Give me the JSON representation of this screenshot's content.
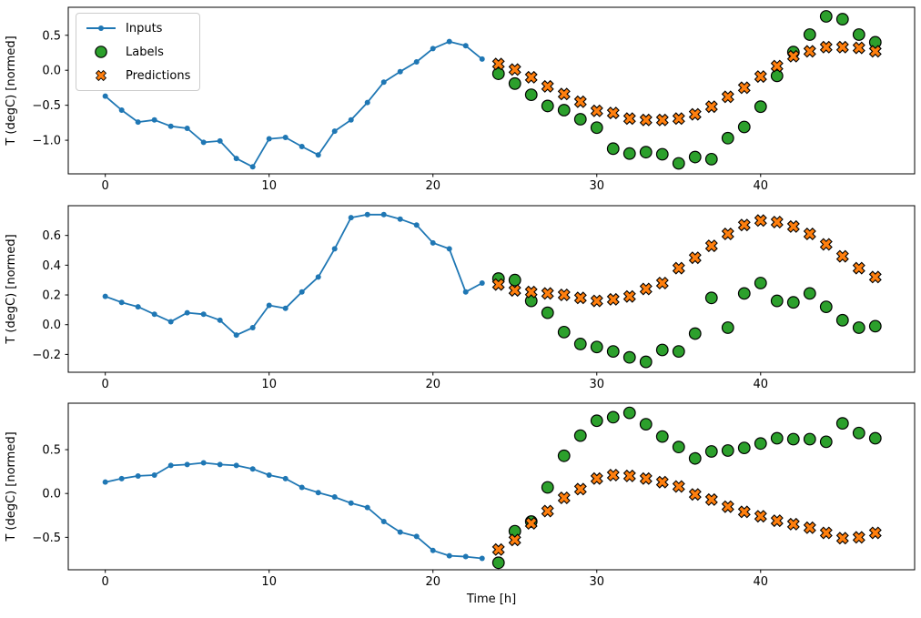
{
  "figure": {
    "xlabel": "Time [h]",
    "background": "#ffffff",
    "colors": {
      "inputs": "#1f77b4",
      "labels": "#2ca02c",
      "predictions": "#ff7f0e",
      "marker_edge": "#000000",
      "legend_border": "#cccccc",
      "axis": "#000000"
    }
  },
  "legend": {
    "position": "upper left of first subplot",
    "items": [
      {
        "label": "Inputs",
        "marker": "line-dot",
        "color": "#1f77b4"
      },
      {
        "label": "Labels",
        "marker": "circle",
        "color": "#2ca02c"
      },
      {
        "label": "Predictions",
        "marker": "x",
        "color": "#ff7f0e"
      }
    ]
  },
  "chart_data": [
    {
      "type": "line",
      "title": "",
      "xlabel": "",
      "ylabel": "T (degC) [normed]",
      "grid": false,
      "xlim": [
        -2.26,
        49.4
      ],
      "ylim": [
        -1.48,
        0.9
      ],
      "xticks": [
        0,
        10,
        20,
        30,
        40
      ],
      "yticks": [
        0.5,
        0.0,
        -0.5,
        -1.0
      ],
      "series": [
        {
          "name": "Inputs",
          "type": "line_dot",
          "color": "#1f77b4",
          "x": [
            0,
            1,
            2,
            3,
            4,
            5,
            6,
            7,
            8,
            9,
            10,
            11,
            12,
            13,
            14,
            15,
            16,
            17,
            18,
            19,
            20,
            21,
            22,
            23
          ],
          "y": [
            -0.37,
            -0.57,
            -0.74,
            -0.71,
            -0.8,
            -0.83,
            -1.03,
            -1.01,
            -1.26,
            -1.38,
            -0.98,
            -0.96,
            -1.09,
            -1.21,
            -0.87,
            -0.71,
            -0.46,
            -0.17,
            -0.02,
            0.12,
            0.31,
            0.41,
            0.35,
            0.16
          ]
        },
        {
          "name": "Labels",
          "type": "scatter_circle",
          "color": "#2ca02c",
          "x": [
            24,
            25,
            26,
            27,
            28,
            29,
            30,
            31,
            32,
            33,
            34,
            35,
            36,
            37,
            38,
            39,
            40,
            41,
            42,
            43,
            44,
            45,
            46,
            47
          ],
          "y": [
            -0.05,
            -0.19,
            -0.35,
            -0.51,
            -0.57,
            -0.7,
            -0.82,
            -1.12,
            -1.19,
            -1.17,
            -1.2,
            -1.33,
            -1.24,
            -1.27,
            -0.97,
            -0.81,
            -0.52,
            -0.08,
            0.26,
            0.51,
            0.77,
            0.73,
            0.51,
            0.4
          ]
        },
        {
          "name": "Predictions",
          "type": "scatter_x",
          "color": "#ff7f0e",
          "x": [
            24,
            25,
            26,
            27,
            28,
            29,
            30,
            31,
            32,
            33,
            34,
            35,
            36,
            37,
            38,
            39,
            40,
            41,
            42,
            43,
            44,
            45,
            46,
            47
          ],
          "y": [
            0.09,
            0.01,
            -0.1,
            -0.23,
            -0.34,
            -0.45,
            -0.58,
            -0.61,
            -0.69,
            -0.71,
            -0.71,
            -0.69,
            -0.63,
            -0.52,
            -0.38,
            -0.25,
            -0.09,
            0.06,
            0.2,
            0.27,
            0.33,
            0.33,
            0.32,
            0.27
          ]
        }
      ]
    },
    {
      "type": "line",
      "title": "",
      "xlabel": "",
      "ylabel": "T (degC) [normed]",
      "grid": false,
      "xlim": [
        -2.26,
        49.4
      ],
      "ylim": [
        -0.32,
        0.8
      ],
      "xticks": [
        0,
        10,
        20,
        30,
        40
      ],
      "yticks": [
        0.6,
        0.4,
        0.2,
        0.0,
        -0.2
      ],
      "series": [
        {
          "name": "Inputs",
          "type": "line_dot",
          "color": "#1f77b4",
          "x": [
            0,
            1,
            2,
            3,
            4,
            5,
            6,
            7,
            8,
            9,
            10,
            11,
            12,
            13,
            14,
            15,
            16,
            17,
            18,
            19,
            20,
            21,
            22,
            23
          ],
          "y": [
            0.19,
            0.15,
            0.12,
            0.07,
            0.02,
            0.08,
            0.07,
            0.03,
            -0.07,
            -0.02,
            0.13,
            0.11,
            0.22,
            0.32,
            0.51,
            0.72,
            0.74,
            0.74,
            0.71,
            0.67,
            0.55,
            0.51,
            0.22,
            0.28
          ]
        },
        {
          "name": "Labels",
          "type": "scatter_circle",
          "color": "#2ca02c",
          "x": [
            24,
            25,
            26,
            27,
            28,
            29,
            30,
            31,
            32,
            33,
            34,
            35,
            36,
            37,
            38,
            39,
            40,
            41,
            42,
            43,
            44,
            45,
            46,
            47
          ],
          "y": [
            0.31,
            0.3,
            0.16,
            0.08,
            -0.05,
            -0.13,
            -0.15,
            -0.18,
            -0.22,
            -0.25,
            -0.17,
            -0.18,
            -0.06,
            0.18,
            -0.02,
            0.21,
            0.28,
            0.16,
            0.15,
            0.21,
            0.12,
            0.03,
            -0.02,
            -0.01
          ]
        },
        {
          "name": "Predictions",
          "type": "scatter_x",
          "color": "#ff7f0e",
          "x": [
            24,
            25,
            26,
            27,
            28,
            29,
            30,
            31,
            32,
            33,
            34,
            35,
            36,
            37,
            38,
            39,
            40,
            41,
            42,
            43,
            44,
            45,
            46,
            47
          ],
          "y": [
            0.27,
            0.23,
            0.22,
            0.21,
            0.2,
            0.18,
            0.16,
            0.17,
            0.19,
            0.24,
            0.28,
            0.38,
            0.45,
            0.53,
            0.61,
            0.67,
            0.7,
            0.69,
            0.66,
            0.61,
            0.54,
            0.46,
            0.38,
            0.32
          ]
        }
      ]
    },
    {
      "type": "line",
      "title": "",
      "xlabel": "Time [h]",
      "ylabel": "T (degC) [normed]",
      "grid": false,
      "xlim": [
        -2.26,
        49.4
      ],
      "ylim": [
        -0.87,
        1.03
      ],
      "xticks": [
        0,
        10,
        20,
        30,
        40
      ],
      "yticks": [
        0.5,
        0.0,
        -0.5
      ],
      "series": [
        {
          "name": "Inputs",
          "type": "line_dot",
          "color": "#1f77b4",
          "x": [
            0,
            1,
            2,
            3,
            4,
            5,
            6,
            7,
            8,
            9,
            10,
            11,
            12,
            13,
            14,
            15,
            16,
            17,
            18,
            19,
            20,
            21,
            22,
            23
          ],
          "y": [
            0.13,
            0.17,
            0.2,
            0.21,
            0.32,
            0.33,
            0.35,
            0.33,
            0.32,
            0.28,
            0.21,
            0.17,
            0.07,
            0.01,
            -0.04,
            -0.11,
            -0.16,
            -0.32,
            -0.44,
            -0.49,
            -0.65,
            -0.71,
            -0.72,
            -0.74
          ]
        },
        {
          "name": "Labels",
          "type": "scatter_circle",
          "color": "#2ca02c",
          "x": [
            24,
            25,
            26,
            27,
            28,
            29,
            30,
            31,
            32,
            33,
            34,
            35,
            36,
            37,
            38,
            39,
            40,
            41,
            42,
            43,
            44,
            45,
            46,
            47
          ],
          "y": [
            -0.79,
            -0.43,
            -0.32,
            0.07,
            0.43,
            0.66,
            0.83,
            0.87,
            0.92,
            0.79,
            0.65,
            0.53,
            0.4,
            0.48,
            0.49,
            0.52,
            0.57,
            0.63,
            0.62,
            0.62,
            0.59,
            0.8,
            0.69,
            0.63
          ]
        },
        {
          "name": "Predictions",
          "type": "scatter_x",
          "color": "#ff7f0e",
          "x": [
            24,
            25,
            26,
            27,
            28,
            29,
            30,
            31,
            32,
            33,
            34,
            35,
            36,
            37,
            38,
            39,
            40,
            41,
            42,
            43,
            44,
            45,
            46,
            47
          ],
          "y": [
            -0.64,
            -0.53,
            -0.34,
            -0.2,
            -0.05,
            0.05,
            0.17,
            0.21,
            0.2,
            0.17,
            0.13,
            0.08,
            -0.01,
            -0.07,
            -0.15,
            -0.21,
            -0.26,
            -0.31,
            -0.35,
            -0.39,
            -0.45,
            -0.51,
            -0.5,
            -0.45
          ]
        }
      ]
    }
  ]
}
